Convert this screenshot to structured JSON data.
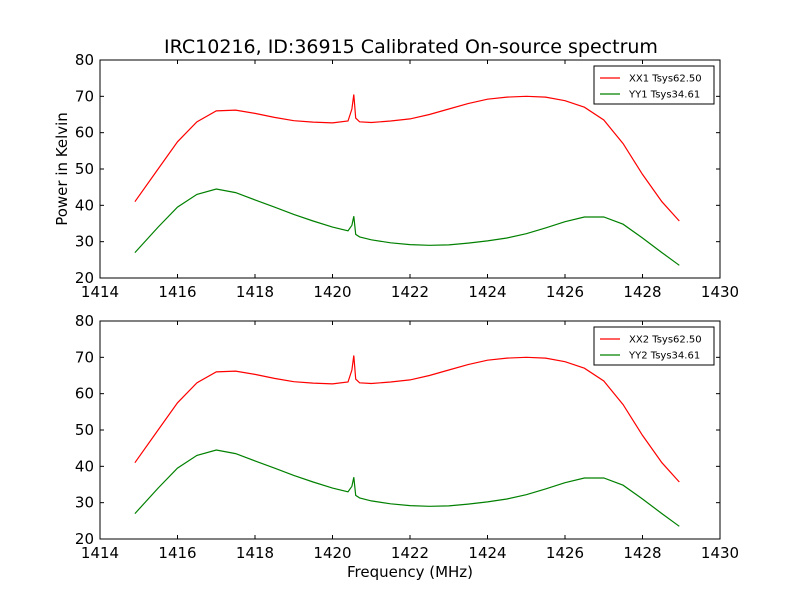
{
  "figure": {
    "title": "IRC10216, ID:36915 Calibrated On-source spectrum",
    "ylabel": "Power in Kelvin",
    "xlabel": "Frequency (MHz)"
  },
  "chart_data": [
    {
      "type": "line",
      "xlim": [
        1414,
        1430
      ],
      "ylim": [
        20,
        80
      ],
      "xticks": [
        1414,
        1416,
        1418,
        1420,
        1422,
        1424,
        1426,
        1428,
        1430
      ],
      "yticks": [
        20,
        30,
        40,
        50,
        60,
        70,
        80
      ],
      "legend_position": "top-right",
      "series": [
        {
          "name": "XX1 Tsys62.50",
          "color": "#ff0000",
          "x": [
            1414.9,
            1415.5,
            1416.0,
            1416.5,
            1417.0,
            1417.5,
            1418.0,
            1418.5,
            1419.0,
            1419.5,
            1420.0,
            1420.4,
            1420.5,
            1420.55,
            1420.6,
            1420.7,
            1421.0,
            1421.5,
            1422.0,
            1422.5,
            1423.0,
            1423.5,
            1424.0,
            1424.5,
            1425.0,
            1425.5,
            1426.0,
            1426.5,
            1427.0,
            1427.5,
            1428.0,
            1428.5,
            1428.95
          ],
          "y": [
            41,
            50,
            57.5,
            63,
            66,
            66.2,
            65.3,
            64.2,
            63.3,
            62.9,
            62.7,
            63.2,
            66.5,
            70.5,
            64,
            63,
            62.8,
            63.2,
            63.8,
            65,
            66.5,
            68,
            69.2,
            69.8,
            70,
            69.8,
            68.8,
            67,
            63.5,
            57,
            48.5,
            41,
            35.7
          ]
        },
        {
          "name": "YY1 Tsys34.61",
          "color": "#008000",
          "x": [
            1414.9,
            1415.5,
            1416.0,
            1416.5,
            1417.0,
            1417.5,
            1418.0,
            1418.5,
            1419.0,
            1419.5,
            1420.0,
            1420.4,
            1420.5,
            1420.55,
            1420.6,
            1420.7,
            1421.0,
            1421.5,
            1422.0,
            1422.5,
            1423.0,
            1423.5,
            1424.0,
            1424.5,
            1425.0,
            1425.5,
            1426.0,
            1426.5,
            1427.0,
            1427.5,
            1428.0,
            1428.5,
            1428.95
          ],
          "y": [
            27,
            34,
            39.5,
            43,
            44.5,
            43.5,
            41.5,
            39.5,
            37.5,
            35.7,
            34,
            33,
            34.5,
            37,
            32,
            31.3,
            30.5,
            29.7,
            29.2,
            29,
            29.1,
            29.6,
            30.2,
            31,
            32.2,
            33.8,
            35.5,
            36.8,
            36.8,
            34.8,
            31,
            27,
            23.5
          ]
        }
      ]
    },
    {
      "type": "line",
      "xlim": [
        1414,
        1430
      ],
      "ylim": [
        20,
        80
      ],
      "xticks": [
        1414,
        1416,
        1418,
        1420,
        1422,
        1424,
        1426,
        1428,
        1430
      ],
      "yticks": [
        20,
        30,
        40,
        50,
        60,
        70,
        80
      ],
      "legend_position": "top-right",
      "series": [
        {
          "name": "XX2 Tsys62.50",
          "color": "#ff0000",
          "x": [
            1414.9,
            1415.5,
            1416.0,
            1416.5,
            1417.0,
            1417.5,
            1418.0,
            1418.5,
            1419.0,
            1419.5,
            1420.0,
            1420.4,
            1420.5,
            1420.55,
            1420.6,
            1420.7,
            1421.0,
            1421.5,
            1422.0,
            1422.5,
            1423.0,
            1423.5,
            1424.0,
            1424.5,
            1425.0,
            1425.5,
            1426.0,
            1426.5,
            1427.0,
            1427.5,
            1428.0,
            1428.5,
            1428.95
          ],
          "y": [
            41,
            50,
            57.5,
            63,
            66,
            66.2,
            65.3,
            64.2,
            63.3,
            62.9,
            62.7,
            63.2,
            66.5,
            70.5,
            64,
            63,
            62.8,
            63.2,
            63.8,
            65,
            66.5,
            68,
            69.2,
            69.8,
            70,
            69.8,
            68.8,
            67,
            63.5,
            57,
            48.5,
            41,
            35.7
          ]
        },
        {
          "name": "YY2 Tsys34.61",
          "color": "#008000",
          "x": [
            1414.9,
            1415.5,
            1416.0,
            1416.5,
            1417.0,
            1417.5,
            1418.0,
            1418.5,
            1419.0,
            1419.5,
            1420.0,
            1420.4,
            1420.5,
            1420.55,
            1420.6,
            1420.7,
            1421.0,
            1421.5,
            1422.0,
            1422.5,
            1423.0,
            1423.5,
            1424.0,
            1424.5,
            1425.0,
            1425.5,
            1426.0,
            1426.5,
            1427.0,
            1427.5,
            1428.0,
            1428.5,
            1428.95
          ],
          "y": [
            27,
            34,
            39.5,
            43,
            44.5,
            43.5,
            41.5,
            39.5,
            37.5,
            35.7,
            34,
            33,
            34.5,
            37,
            32,
            31.3,
            30.5,
            29.7,
            29.2,
            29,
            29.1,
            29.6,
            30.2,
            31,
            32.2,
            33.8,
            35.5,
            36.8,
            36.8,
            34.8,
            31,
            27,
            23.5
          ]
        }
      ]
    }
  ]
}
